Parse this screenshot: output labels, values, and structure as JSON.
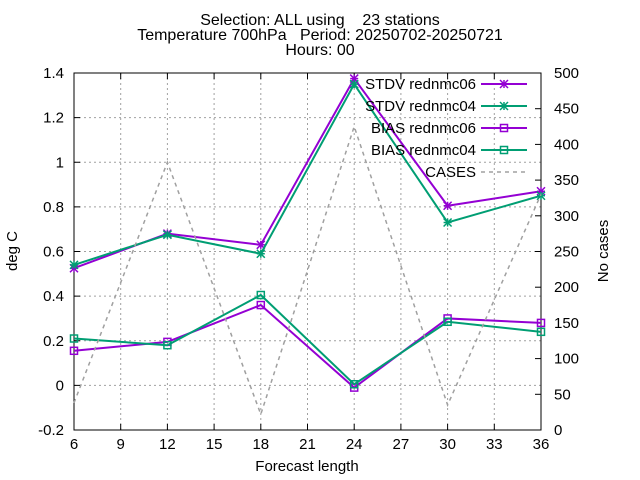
{
  "header": {
    "title_line1": "Selection: ALL using    23 stations",
    "title_line2": "Temperature 700hPa   Period: 20250702-20250721",
    "title_line3": "Hours: 00"
  },
  "chart_data": {
    "type": "line",
    "xlabel": "Forecast length",
    "ylabel": "deg C",
    "y2label": "No cases",
    "x": [
      6,
      12,
      18,
      24,
      30,
      36
    ],
    "xlim": [
      6,
      36
    ],
    "xticks": [
      6,
      9,
      12,
      15,
      18,
      21,
      24,
      27,
      30,
      33,
      36
    ],
    "ylim": [
      -0.2,
      1.4
    ],
    "yticks": [
      -0.2,
      0,
      0.2,
      0.4,
      0.6,
      0.8,
      1,
      1.2,
      1.4
    ],
    "ytick_labels": [
      "-0.2",
      "0",
      "0.2",
      "0.4",
      "0.6",
      "0.8",
      "1",
      "1.2",
      "1.4"
    ],
    "y2lim": [
      0,
      500
    ],
    "y2ticks": [
      0,
      50,
      100,
      150,
      200,
      250,
      300,
      350,
      400,
      450,
      500
    ],
    "grid": true,
    "legend_position": "top-right",
    "series": [
      {
        "name": "STDV rednmc06",
        "axis": "y",
        "color": "#9400d3",
        "marker": "x-star",
        "dash": "solid",
        "values": [
          0.525,
          0.68,
          0.63,
          1.375,
          0.805,
          0.87
        ]
      },
      {
        "name": "STDV rednmc04",
        "axis": "y",
        "color": "#009e73",
        "marker": "x-star",
        "dash": "solid",
        "values": [
          0.54,
          0.675,
          0.59,
          1.35,
          0.73,
          0.85
        ]
      },
      {
        "name": "BIAS rednmc06",
        "axis": "y",
        "color": "#9400d3",
        "marker": "square",
        "dash": "solid",
        "values": [
          0.155,
          0.195,
          0.36,
          -0.01,
          0.3,
          0.28
        ]
      },
      {
        "name": "BIAS rednmc04",
        "axis": "y",
        "color": "#009e73",
        "marker": "square",
        "dash": "solid",
        "values": [
          0.21,
          0.18,
          0.405,
          0.005,
          0.285,
          0.24
        ]
      },
      {
        "name": "CASES",
        "axis": "y2",
        "color": "#a0a0a0",
        "marker": "none",
        "dash": "dashed",
        "values": [
          38,
          375,
          22,
          425,
          35,
          330
        ]
      }
    ]
  }
}
